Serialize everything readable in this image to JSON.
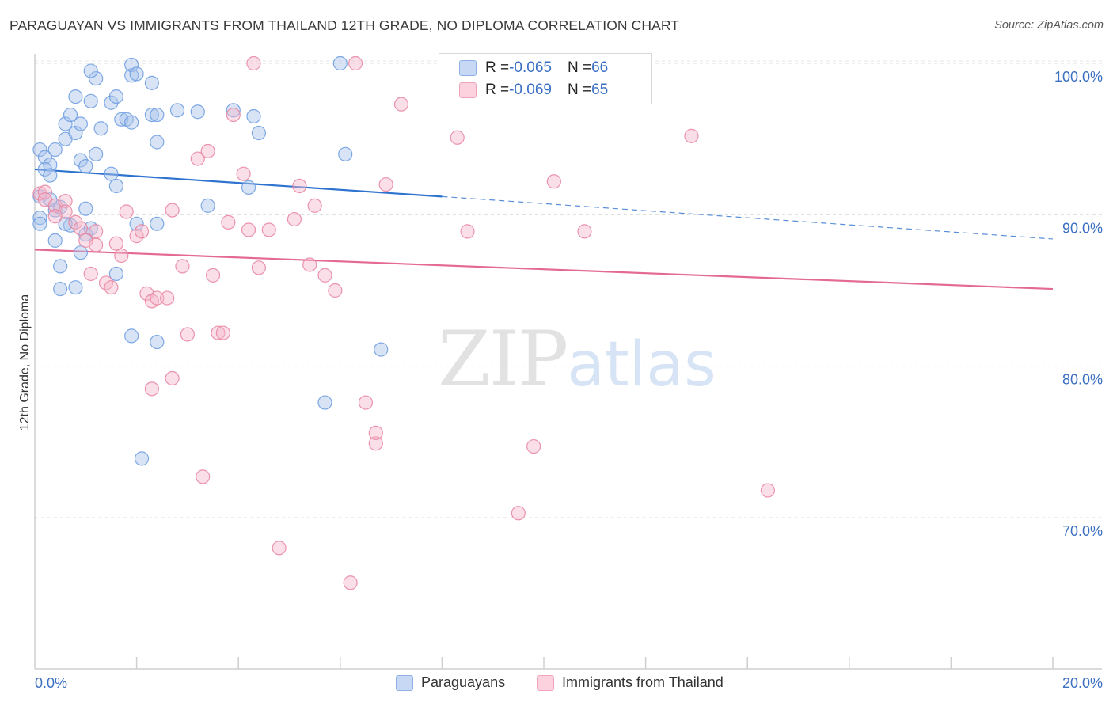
{
  "header": {
    "title": "PARAGUAYAN VS IMMIGRANTS FROM THAILAND 12TH GRADE, NO DIPLOMA CORRELATION CHART",
    "source": "Source: ZipAtlas.com"
  },
  "watermark": {
    "part1": "ZIP",
    "part2": "atlas"
  },
  "legend_box": {
    "rows": [
      {
        "r_label": "R = ",
        "r_value": "-0.065",
        "n_label": "N = ",
        "n_value": "66",
        "color": "#a9c4ec"
      },
      {
        "r_label": "R = ",
        "r_value": "-0.069",
        "n_label": "N = ",
        "n_value": "65",
        "color": "#f5b9cb"
      }
    ]
  },
  "bottom_legend": [
    {
      "label": "Paraguayans",
      "color": "#a9c4ec"
    },
    {
      "label": "Immigrants from Thailand",
      "color": "#f5b9cb"
    }
  ],
  "chart_data": {
    "type": "scatter",
    "title": "PARAGUAYAN VS IMMIGRANTS FROM THAILAND 12TH GRADE, NO DIPLOMA CORRELATION CHART",
    "xlabel": "",
    "ylabel": "12th Grade, No Diploma",
    "xlim": [
      0,
      20
    ],
    "ylim": [
      60,
      101
    ],
    "x_tick_labels": [
      "0.0%",
      "20.0%"
    ],
    "y_ticks": [
      {
        "value": 100,
        "label": "100.0%"
      },
      {
        "value": 90,
        "label": "90.0%"
      },
      {
        "value": 80,
        "label": "80.0%"
      },
      {
        "value": 70,
        "label": "70.0%"
      }
    ],
    "grid": true,
    "series": [
      {
        "name": "Paraguayans",
        "color": "#6a9be0",
        "fill": "#a9c4ec",
        "trend": {
          "x": [
            0,
            8.0
          ],
          "y": [
            93.0,
            91.2
          ],
          "dashed_extension": {
            "x": [
              8.0,
              20.0
            ],
            "y": [
              91.2,
              88.4
            ]
          },
          "color": "#2f73d0"
        },
        "points": [
          [
            0.1,
            94.3
          ],
          [
            0.2,
            93.8
          ],
          [
            0.3,
            93.3
          ],
          [
            0.2,
            93.0
          ],
          [
            0.3,
            92.6
          ],
          [
            0.1,
            89.8
          ],
          [
            0.1,
            89.4
          ],
          [
            0.4,
            94.3
          ],
          [
            0.6,
            96.0
          ],
          [
            0.7,
            96.6
          ],
          [
            0.6,
            95.0
          ],
          [
            0.8,
            95.4
          ],
          [
            0.9,
            96.0
          ],
          [
            0.9,
            93.6
          ],
          [
            1.0,
            93.2
          ],
          [
            1.2,
            94.0
          ],
          [
            0.8,
            97.8
          ],
          [
            1.1,
            97.5
          ],
          [
            1.2,
            99.0
          ],
          [
            1.1,
            99.5
          ],
          [
            1.3,
            95.7
          ],
          [
            1.5,
            97.4
          ],
          [
            1.6,
            97.8
          ],
          [
            1.7,
            96.3
          ],
          [
            1.8,
            96.3
          ],
          [
            1.9,
            99.2
          ],
          [
            1.9,
            99.9
          ],
          [
            1.9,
            96.1
          ],
          [
            2.0,
            99.3
          ],
          [
            2.3,
            98.7
          ],
          [
            2.3,
            96.6
          ],
          [
            2.4,
            96.6
          ],
          [
            2.4,
            94.8
          ],
          [
            2.8,
            96.9
          ],
          [
            3.2,
            96.8
          ],
          [
            3.9,
            96.9
          ],
          [
            4.3,
            96.5
          ],
          [
            4.4,
            95.4
          ],
          [
            6.0,
            100.0
          ],
          [
            6.1,
            94.0
          ],
          [
            0.4,
            90.3
          ],
          [
            0.5,
            90.5
          ],
          [
            0.7,
            89.3
          ],
          [
            1.0,
            90.4
          ],
          [
            1.0,
            88.7
          ],
          [
            0.9,
            87.5
          ],
          [
            0.4,
            88.3
          ],
          [
            0.5,
            86.6
          ],
          [
            0.5,
            85.1
          ],
          [
            0.8,
            85.2
          ],
          [
            1.5,
            92.7
          ],
          [
            1.6,
            91.9
          ],
          [
            2.0,
            89.4
          ],
          [
            2.4,
            89.4
          ],
          [
            3.4,
            90.6
          ],
          [
            4.2,
            91.8
          ],
          [
            1.6,
            86.1
          ],
          [
            1.9,
            82.0
          ],
          [
            2.4,
            81.6
          ],
          [
            2.1,
            73.9
          ],
          [
            6.8,
            81.1
          ],
          [
            5.7,
            77.6
          ],
          [
            0.1,
            91.2
          ],
          [
            0.3,
            91.0
          ],
          [
            0.6,
            89.4
          ],
          [
            1.1,
            89.1
          ]
        ]
      },
      {
        "name": "Immigrants from Thailand",
        "color": "#e8839f",
        "fill": "#f5b9cb",
        "trend": {
          "x": [
            0,
            20.0
          ],
          "y": [
            87.7,
            85.1
          ],
          "color": "#e46a93"
        },
        "points": [
          [
            0.1,
            91.4
          ],
          [
            0.2,
            91.5
          ],
          [
            0.2,
            91.0
          ],
          [
            0.4,
            90.6
          ],
          [
            0.6,
            90.9
          ],
          [
            0.6,
            90.2
          ],
          [
            0.4,
            89.9
          ],
          [
            0.8,
            89.5
          ],
          [
            0.9,
            89.1
          ],
          [
            1.0,
            88.3
          ],
          [
            1.2,
            88.0
          ],
          [
            1.1,
            86.1
          ],
          [
            1.4,
            85.5
          ],
          [
            1.5,
            85.2
          ],
          [
            1.6,
            88.1
          ],
          [
            1.7,
            87.3
          ],
          [
            1.8,
            90.2
          ],
          [
            2.0,
            88.6
          ],
          [
            2.1,
            88.9
          ],
          [
            2.2,
            84.8
          ],
          [
            2.3,
            84.3
          ],
          [
            2.4,
            84.5
          ],
          [
            2.6,
            84.5
          ],
          [
            2.7,
            90.3
          ],
          [
            2.9,
            86.6
          ],
          [
            3.0,
            82.1
          ],
          [
            3.2,
            93.7
          ],
          [
            3.4,
            94.2
          ],
          [
            3.5,
            86.0
          ],
          [
            3.6,
            82.2
          ],
          [
            3.7,
            82.2
          ],
          [
            3.8,
            89.5
          ],
          [
            3.9,
            96.6
          ],
          [
            4.1,
            92.7
          ],
          [
            4.2,
            89.0
          ],
          [
            4.4,
            86.5
          ],
          [
            4.6,
            89.0
          ],
          [
            4.8,
            68.0
          ],
          [
            5.1,
            89.7
          ],
          [
            5.2,
            91.9
          ],
          [
            5.4,
            86.7
          ],
          [
            5.5,
            90.6
          ],
          [
            5.7,
            86.0
          ],
          [
            5.9,
            85.0
          ],
          [
            6.3,
            100.0
          ],
          [
            6.5,
            77.6
          ],
          [
            6.7,
            74.9
          ],
          [
            6.7,
            75.6
          ],
          [
            6.9,
            92.0
          ],
          [
            7.2,
            97.3
          ],
          [
            8.3,
            95.1
          ],
          [
            8.5,
            88.9
          ],
          [
            9.5,
            70.3
          ],
          [
            9.8,
            74.7
          ],
          [
            10.2,
            92.2
          ],
          [
            10.6,
            98.4
          ],
          [
            10.8,
            88.9
          ],
          [
            12.9,
            95.2
          ],
          [
            14.4,
            71.8
          ],
          [
            4.3,
            100.0
          ],
          [
            3.3,
            72.7
          ],
          [
            2.7,
            79.2
          ],
          [
            2.3,
            78.5
          ],
          [
            6.2,
            65.7
          ],
          [
            1.2,
            88.9
          ]
        ]
      }
    ]
  }
}
